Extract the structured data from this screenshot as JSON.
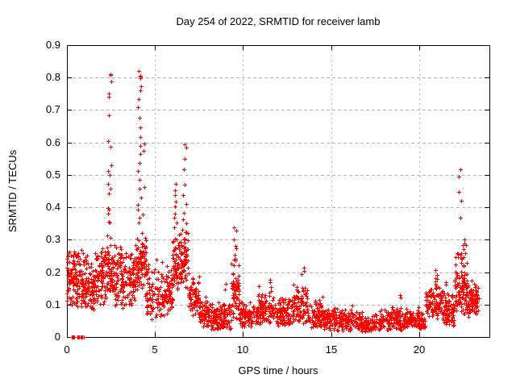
{
  "chart_data": {
    "type": "scatter",
    "title": "Day 254 of 2022, SRMTID for receiver lamb",
    "xlabel": "GPS time / hours",
    "ylabel": "SRMTID / TECUs",
    "xlim": [
      0,
      24
    ],
    "ylim": [
      0,
      0.9
    ],
    "xticks": [
      0,
      5,
      10,
      15,
      20
    ],
    "yticks": [
      0,
      0.1,
      0.2,
      0.3,
      0.4,
      0.5,
      0.6,
      0.7,
      0.8,
      0.9
    ],
    "grid": true,
    "legend": "none",
    "marker": {
      "shape": "plus",
      "color": "#ff0000",
      "size": 5
    },
    "colors": {
      "grid": "#b0b0b0",
      "border": "#000000",
      "background": "#ffffff",
      "text": "#000000"
    },
    "seed": 254,
    "bands": [
      [
        0.0,
        0.5,
        75,
        0.09,
        0.31,
        1.25
      ],
      [
        0.5,
        1.0,
        75,
        0.085,
        0.3,
        1.3
      ],
      [
        1.0,
        1.6,
        85,
        0.08,
        0.27,
        1.3
      ],
      [
        1.6,
        2.1,
        75,
        0.09,
        0.3,
        1.2
      ],
      [
        2.1,
        2.7,
        85,
        0.1,
        0.33,
        1.15
      ],
      [
        2.7,
        3.4,
        85,
        0.09,
        0.3,
        1.3
      ],
      [
        3.4,
        3.9,
        65,
        0.1,
        0.28,
        1.2
      ],
      [
        3.9,
        4.5,
        90,
        0.12,
        0.34,
        1.05
      ],
      [
        4.5,
        5.4,
        90,
        0.045,
        0.24,
        1.15
      ],
      [
        5.4,
        6.0,
        70,
        0.06,
        0.22,
        1.2
      ],
      [
        6.0,
        6.45,
        65,
        0.13,
        0.33,
        1.05
      ],
      [
        6.45,
        6.9,
        65,
        0.14,
        0.34,
        1.1
      ],
      [
        6.9,
        7.5,
        70,
        0.06,
        0.21,
        1.3
      ],
      [
        7.5,
        8.1,
        70,
        0.03,
        0.13,
        1.3
      ],
      [
        8.1,
        9.35,
        125,
        0.02,
        0.11,
        1.3
      ],
      [
        9.35,
        9.8,
        70,
        0.05,
        0.26,
        1.45
      ],
      [
        9.8,
        10.8,
        100,
        0.03,
        0.12,
        1.35
      ],
      [
        10.8,
        11.8,
        105,
        0.04,
        0.16,
        1.4
      ],
      [
        11.8,
        12.85,
        105,
        0.03,
        0.14,
        1.35
      ],
      [
        12.85,
        13.7,
        95,
        0.04,
        0.18,
        1.35
      ],
      [
        13.7,
        14.6,
        90,
        0.03,
        0.13,
        1.35
      ],
      [
        14.6,
        16.4,
        165,
        0.02,
        0.1,
        1.35
      ],
      [
        16.4,
        17.6,
        110,
        0.015,
        0.08,
        1.3
      ],
      [
        17.6,
        19.2,
        145,
        0.02,
        0.1,
        1.35
      ],
      [
        19.2,
        20.35,
        105,
        0.025,
        0.095,
        1.3
      ],
      [
        20.35,
        21.3,
        105,
        0.05,
        0.19,
        1.4
      ],
      [
        21.3,
        22.0,
        80,
        0.03,
        0.15,
        1.35
      ],
      [
        22.0,
        22.75,
        105,
        0.07,
        0.3,
        1.5
      ],
      [
        22.75,
        23.4,
        85,
        0.06,
        0.18,
        1.15
      ]
    ],
    "spikes": [
      {
        "x": 2.42,
        "dx": 0.1,
        "ys": [
          0.815,
          0.805,
          0.79,
          0.75,
          0.745,
          0.68,
          0.605,
          0.585,
          0.53,
          0.51,
          0.5,
          0.47,
          0.455,
          0.44,
          0.4,
          0.39,
          0.38,
          0.36,
          0.35
        ]
      },
      {
        "x": 4.12,
        "dx": 0.1,
        "ys": [
          0.825,
          0.81,
          0.805,
          0.8,
          0.795,
          0.775,
          0.76,
          0.735,
          0.71,
          0.68,
          0.65,
          0.62,
          0.59,
          0.565,
          0.54,
          0.51,
          0.48,
          0.455,
          0.43,
          0.41,
          0.39,
          0.37,
          0.355
        ]
      },
      {
        "x": 4.38,
        "dx": 0.06,
        "ys": [
          0.6,
          0.57,
          0.46,
          0.38
        ]
      },
      {
        "x": 6.15,
        "dx": 0.09,
        "ys": [
          0.47,
          0.455,
          0.44,
          0.42,
          0.4,
          0.385,
          0.37,
          0.355,
          0.34
        ]
      },
      {
        "x": 6.7,
        "dx": 0.1,
        "ys": [
          0.595,
          0.585,
          0.55,
          0.52,
          0.47,
          0.435,
          0.41,
          0.385,
          0.365,
          0.35
        ]
      },
      {
        "x": 9.0,
        "dx": 0.05,
        "ys": [
          0.165,
          0.15
        ]
      },
      {
        "x": 9.55,
        "dx": 0.08,
        "ys": [
          0.335,
          0.325,
          0.3,
          0.285,
          0.27,
          0.255,
          0.24,
          0.225
        ]
      },
      {
        "x": 11.5,
        "dx": 0.07,
        "ys": [
          0.175,
          0.165
        ]
      },
      {
        "x": 13.4,
        "dx": 0.07,
        "ys": [
          0.215,
          0.205,
          0.19
        ]
      },
      {
        "x": 18.95,
        "dx": 0.06,
        "ys": [
          0.13,
          0.12
        ]
      },
      {
        "x": 20.95,
        "dx": 0.08,
        "ys": [
          0.205,
          0.195,
          0.185
        ]
      },
      {
        "x": 21.55,
        "dx": 0.05,
        "ys": [
          0.17,
          0.16
        ]
      },
      {
        "x": 22.33,
        "dx": 0.07,
        "ys": [
          0.52,
          0.49,
          0.445,
          0.42,
          0.365
        ]
      },
      {
        "x": 22.55,
        "dx": 0.06,
        "ys": [
          0.3,
          0.29,
          0.275
        ]
      }
    ],
    "zero_points": [
      [
        0.25,
        0.42,
        5
      ],
      [
        0.5,
        0.68,
        5
      ],
      [
        0.78,
        0.95,
        5
      ]
    ]
  }
}
